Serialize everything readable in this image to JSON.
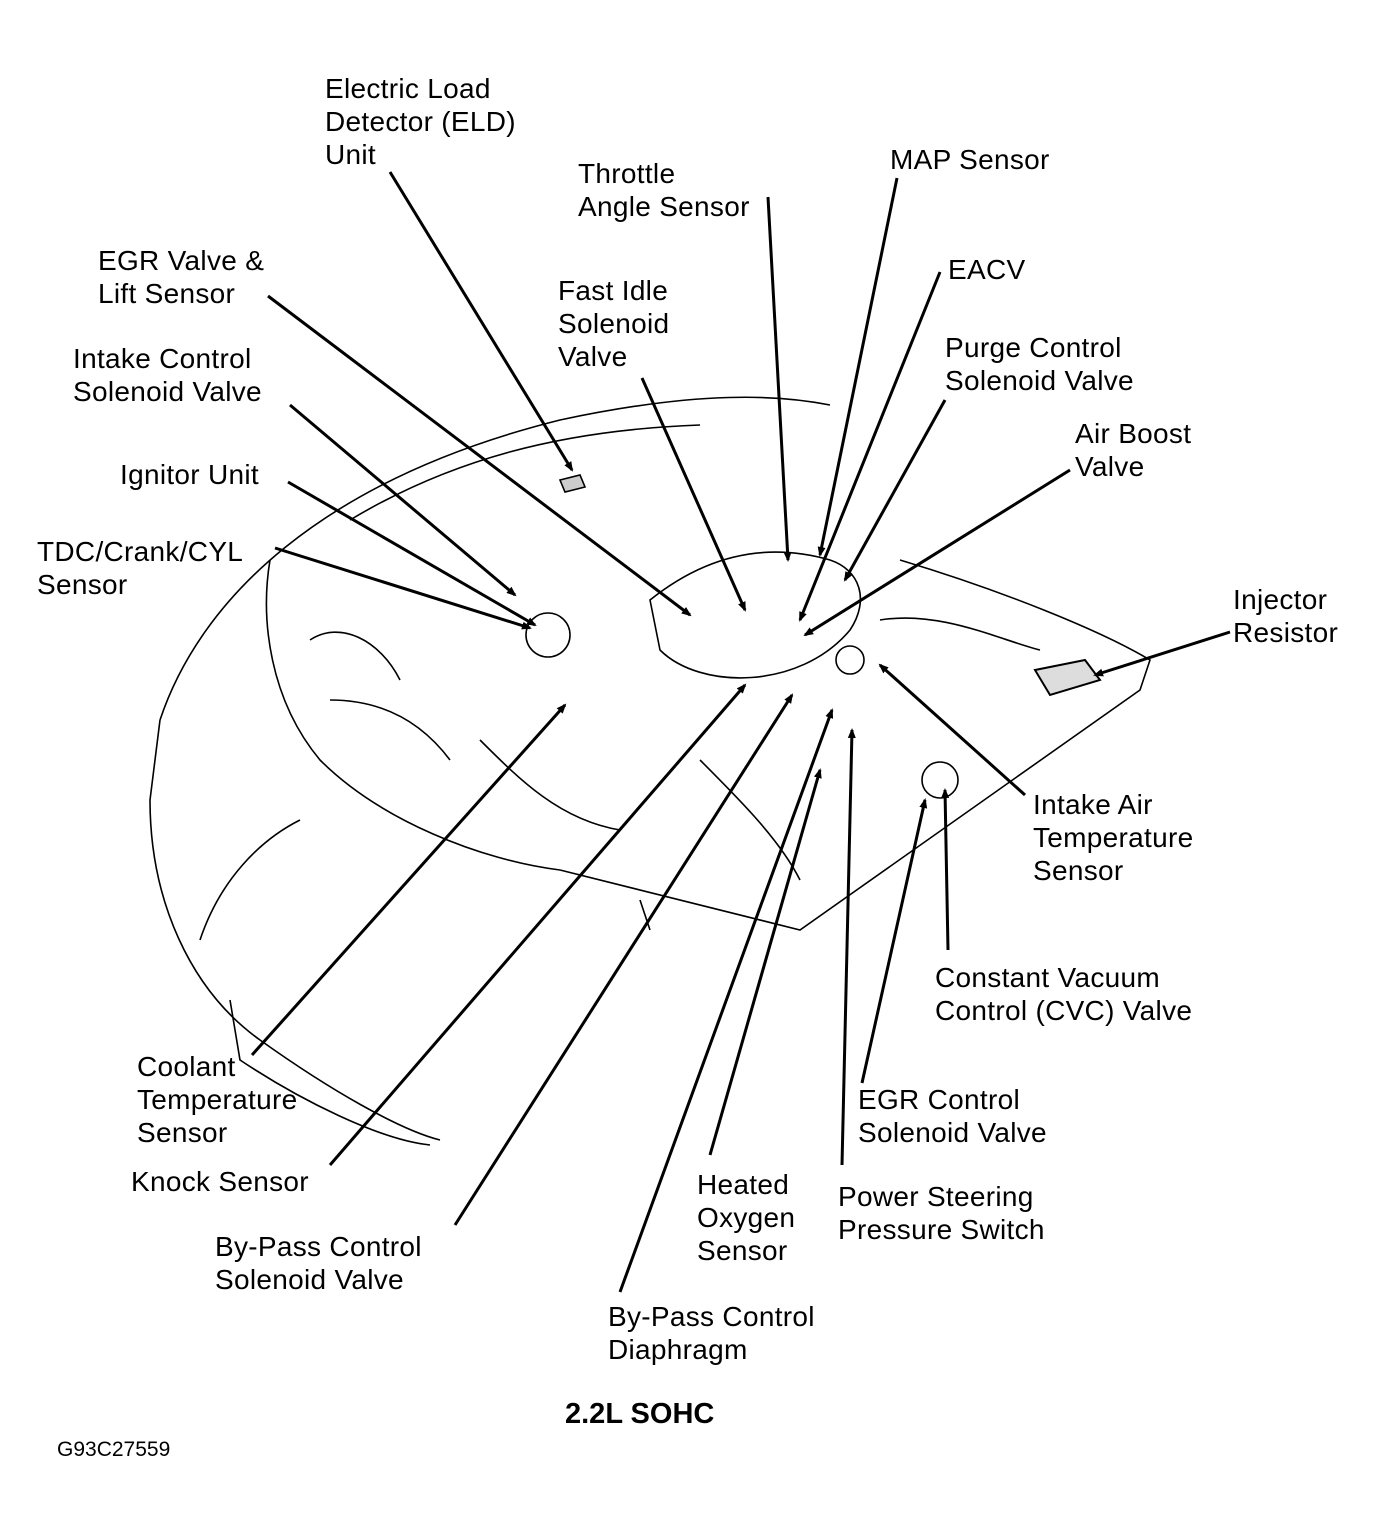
{
  "labels": {
    "eld": "Electric Load\nDetector (ELD)\nUnit",
    "throttle": "Throttle\nAngle Sensor",
    "map": "MAP Sensor",
    "egr_valve": "EGR Valve &\nLift Sensor",
    "eacv": "EACV",
    "fast_idle": "Fast Idle\nSolenoid\nValve",
    "purge": "Purge Control\nSolenoid Valve",
    "intake_control": "Intake Control\nSolenoid Valve",
    "air_boost": "Air Boost\nValve",
    "ignitor": "Ignitor Unit",
    "tdc": "TDC/Crank/CYL\nSensor",
    "injector": "Injector\nResistor",
    "intake_air": "Intake Air\nTemperature\nSensor",
    "cvc": "Constant Vacuum\nControl (CVC) Valve",
    "egr_control": "EGR Control\nSolenoid Valve",
    "power_steering": "Power Steering\nPressure Switch",
    "oxygen": "Heated\nOxygen\nSensor",
    "coolant": "Coolant\nTemperature\nSensor",
    "knock": "Knock Sensor",
    "bypass_valve": "By-Pass Control\nSolenoid Valve",
    "bypass_diaphragm": "By-Pass Control\nDiaphragm"
  },
  "title": "2.2L SOHC",
  "figure_code": "G93C27559"
}
